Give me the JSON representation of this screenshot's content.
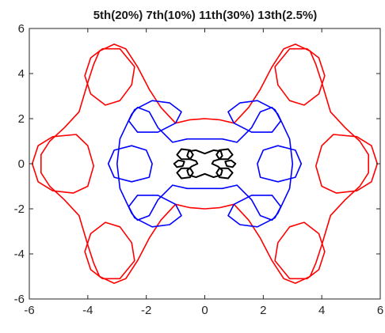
{
  "chart_data": {
    "type": "line",
    "title": "5th(20%)  7th(10%)  11th(30%)  13th(2.5%)",
    "xlabel": "",
    "ylabel": "",
    "xlim": [
      -6,
      6
    ],
    "ylim": [
      -6,
      6
    ],
    "xticks": [
      -6,
      -4,
      -2,
      0,
      2,
      4,
      6
    ],
    "yticks": [
      -6,
      -4,
      -2,
      0,
      2,
      4,
      6
    ],
    "xtick_labels": [
      "-6",
      "-4",
      "-2",
      "0",
      "2",
      "4",
      "6"
    ],
    "ytick_labels": [
      "-6",
      "-4",
      "-2",
      "0",
      "2",
      "4",
      "6"
    ],
    "grid": false,
    "series": [
      {
        "color": "#ff0000",
        "closed": true,
        "x": [
          0.0,
          -0.5,
          -1.0,
          -1.5,
          -1.9,
          -2.3,
          -2.7,
          -3.1,
          -3.6,
          -3.8,
          -4.0,
          -4.3,
          -4.8,
          -5.3,
          -5.6,
          -5.6,
          -5.3,
          -4.8,
          -4.3,
          -4.0,
          -3.8,
          -3.6,
          -3.1,
          -2.7,
          -2.3,
          -1.9,
          -1.5,
          -1.0,
          -0.5,
          0.0,
          0.5,
          1.0,
          1.5,
          1.9,
          2.3,
          2.7,
          3.1,
          3.6,
          3.8,
          4.0,
          4.3,
          4.8,
          5.3,
          5.6,
          5.6,
          5.3,
          4.8,
          4.3,
          4.0,
          3.8,
          3.6,
          3.1,
          2.7,
          2.3,
          1.9,
          1.5,
          1.0,
          0.5,
          0.0
        ],
        "y": [
          2.0,
          1.95,
          1.8,
          2.5,
          3.3,
          4.3,
          5.1,
          5.3,
          5.0,
          4.4,
          3.6,
          2.3,
          1.6,
          1.0,
          0.4,
          -0.4,
          -1.0,
          -1.6,
          -2.3,
          -3.6,
          -4.4,
          -5.0,
          -5.3,
          -5.1,
          -4.3,
          -3.3,
          -2.5,
          -1.8,
          -1.95,
          -2.0,
          -1.95,
          -1.8,
          -2.5,
          -3.3,
          -4.3,
          -5.1,
          -5.3,
          -5.0,
          -4.4,
          -3.6,
          -2.3,
          -1.6,
          -1.0,
          -0.4,
          0.4,
          1.0,
          1.6,
          2.3,
          3.6,
          4.4,
          5.0,
          5.3,
          5.1,
          4.3,
          3.3,
          2.5,
          1.8,
          1.95,
          2.0
        ]
      },
      {
        "color": "#ff0000",
        "closed": true,
        "x": [
          -2.4,
          -2.9,
          -3.5,
          -3.9,
          -4.1,
          -3.9,
          -3.4,
          -2.9,
          -2.5,
          -2.4
        ],
        "y": [
          4.3,
          5.1,
          5.1,
          4.7,
          3.9,
          3.1,
          2.6,
          2.8,
          3.5,
          4.3
        ]
      },
      {
        "color": "#ff0000",
        "closed": true,
        "x": [
          2.4,
          2.9,
          3.5,
          3.9,
          4.1,
          3.9,
          3.4,
          2.9,
          2.5,
          2.4
        ],
        "y": [
          4.3,
          5.1,
          5.1,
          4.7,
          3.9,
          3.1,
          2.6,
          2.8,
          3.5,
          4.3
        ]
      },
      {
        "color": "#ff0000",
        "closed": true,
        "x": [
          -2.4,
          -2.9,
          -3.5,
          -3.9,
          -4.1,
          -3.9,
          -3.4,
          -2.9,
          -2.5,
          -2.4
        ],
        "y": [
          -4.3,
          -5.1,
          -5.1,
          -4.7,
          -3.9,
          -3.1,
          -2.6,
          -2.8,
          -3.5,
          -4.3
        ]
      },
      {
        "color": "#ff0000",
        "closed": true,
        "x": [
          2.4,
          2.9,
          3.5,
          3.9,
          4.1,
          3.9,
          3.4,
          2.9,
          2.5,
          2.4
        ],
        "y": [
          -4.3,
          -5.1,
          -5.1,
          -4.7,
          -3.9,
          -3.1,
          -2.6,
          -2.8,
          -3.5,
          -4.3
        ]
      },
      {
        "color": "#ff0000",
        "closed": true,
        "x": [
          -4.4,
          -5.2,
          -5.7,
          -5.9,
          -5.7,
          -5.2,
          -4.5,
          -4.0,
          -3.8,
          -4.0,
          -4.4
        ],
        "y": [
          1.3,
          1.2,
          0.8,
          0.0,
          -0.8,
          -1.2,
          -1.3,
          -1.0,
          -0.1,
          0.8,
          1.3
        ]
      },
      {
        "color": "#ff0000",
        "closed": true,
        "x": [
          4.4,
          5.2,
          5.7,
          5.9,
          5.7,
          5.2,
          4.5,
          4.0,
          3.8,
          4.0,
          4.4
        ],
        "y": [
          1.3,
          1.2,
          0.8,
          0.0,
          -0.8,
          -1.2,
          -1.3,
          -1.0,
          -0.1,
          0.8,
          1.3
        ]
      },
      {
        "color": "#0000ff",
        "closed": true,
        "x": [
          0.0,
          -0.6,
          -1.1,
          -1.6,
          -1.9,
          -2.3,
          -2.5,
          -2.9,
          -3.0,
          -2.9,
          -2.5,
          -2.3,
          -1.9,
          -1.6,
          -1.1,
          -0.6,
          0.0,
          0.6,
          1.1,
          1.6,
          1.9,
          2.3,
          2.5,
          2.9,
          3.0,
          2.9,
          2.5,
          2.3,
          1.9,
          1.6,
          1.1,
          0.6,
          0.0
        ],
        "y": [
          1.1,
          1.1,
          0.95,
          1.6,
          2.3,
          2.5,
          2.2,
          1.1,
          0.0,
          -1.1,
          -2.2,
          -2.5,
          -2.3,
          -1.6,
          -0.95,
          -1.1,
          -1.1,
          -1.1,
          -0.95,
          -1.6,
          -2.3,
          -2.5,
          -2.2,
          -1.1,
          0.0,
          1.1,
          2.2,
          2.5,
          2.3,
          1.6,
          0.95,
          1.1,
          1.1
        ]
      },
      {
        "color": "#0000ff",
        "closed": true,
        "x": [
          -1.2,
          -1.8,
          -2.4,
          -2.6,
          -2.3,
          -1.6,
          -1.0,
          -0.8,
          -1.2
        ],
        "y": [
          2.7,
          2.8,
          2.4,
          1.9,
          1.4,
          1.4,
          1.8,
          2.3,
          2.7
        ]
      },
      {
        "color": "#0000ff",
        "closed": true,
        "x": [
          1.2,
          1.8,
          2.4,
          2.6,
          2.3,
          1.6,
          1.0,
          0.8,
          1.2
        ],
        "y": [
          2.7,
          2.8,
          2.4,
          1.9,
          1.4,
          1.4,
          1.8,
          2.3,
          2.7
        ]
      },
      {
        "color": "#0000ff",
        "closed": true,
        "x": [
          -1.2,
          -1.8,
          -2.4,
          -2.6,
          -2.3,
          -1.6,
          -1.0,
          -0.8,
          -1.2
        ],
        "y": [
          -2.7,
          -2.8,
          -2.4,
          -1.9,
          -1.4,
          -1.4,
          -1.8,
          -2.3,
          -2.7
        ]
      },
      {
        "color": "#0000ff",
        "closed": true,
        "x": [
          1.2,
          1.8,
          2.4,
          2.6,
          2.3,
          1.6,
          1.0,
          0.8,
          1.2
        ],
        "y": [
          -2.7,
          -2.8,
          -2.4,
          -1.9,
          -1.4,
          -1.4,
          -1.8,
          -2.3,
          -2.7
        ]
      },
      {
        "color": "#0000ff",
        "closed": true,
        "x": [
          -2.0,
          -2.5,
          -3.1,
          -3.3,
          -3.1,
          -2.5,
          -1.9,
          -1.8,
          -2.0
        ],
        "y": [
          0.6,
          0.8,
          0.6,
          0.0,
          -0.6,
          -0.8,
          -0.6,
          0.0,
          0.6
        ]
      },
      {
        "color": "#0000ff",
        "closed": true,
        "x": [
          2.0,
          2.5,
          3.1,
          3.3,
          3.1,
          2.5,
          1.9,
          1.8,
          2.0
        ],
        "y": [
          0.6,
          0.8,
          0.6,
          0.0,
          -0.6,
          -0.8,
          -0.6,
          0.0,
          0.6
        ]
      },
      {
        "color": "#000000",
        "closed": true,
        "x": [
          0.0,
          -0.3,
          -0.55,
          -0.6,
          -0.5,
          -0.3,
          -0.25,
          -0.45,
          -0.6,
          -0.55,
          -0.3,
          0.0,
          0.3,
          0.55,
          0.6,
          0.45,
          0.25,
          0.3,
          0.5,
          0.6,
          0.55,
          0.3,
          0.0
        ],
        "y": [
          0.45,
          0.6,
          0.55,
          0.35,
          0.2,
          0.12,
          0.0,
          -0.12,
          -0.3,
          -0.5,
          -0.6,
          -0.45,
          -0.6,
          -0.5,
          -0.3,
          -0.12,
          0.0,
          0.12,
          0.2,
          0.35,
          0.55,
          0.6,
          0.45
        ]
      },
      {
        "color": "#000000",
        "closed": true,
        "x": [
          -0.5,
          -0.8,
          -0.95,
          -0.8,
          -0.5,
          -0.4,
          -0.5
        ],
        "y": [
          0.6,
          0.65,
          0.4,
          0.2,
          0.2,
          0.4,
          0.6
        ]
      },
      {
        "color": "#000000",
        "closed": true,
        "x": [
          0.5,
          0.8,
          0.95,
          0.8,
          0.5,
          0.4,
          0.5
        ],
        "y": [
          0.6,
          0.65,
          0.4,
          0.2,
          0.2,
          0.4,
          0.6
        ]
      },
      {
        "color": "#000000",
        "closed": true,
        "x": [
          -0.5,
          -0.8,
          -0.95,
          -0.8,
          -0.5,
          -0.4,
          -0.5
        ],
        "y": [
          -0.6,
          -0.65,
          -0.4,
          -0.2,
          -0.2,
          -0.4,
          -0.6
        ]
      },
      {
        "color": "#000000",
        "closed": true,
        "x": [
          0.5,
          0.8,
          0.95,
          0.8,
          0.5,
          0.4,
          0.5
        ],
        "y": [
          -0.6,
          -0.65,
          -0.4,
          -0.2,
          -0.2,
          -0.4,
          -0.6
        ]
      },
      {
        "color": "#000000",
        "closed": true,
        "x": [
          -0.9,
          -1.05,
          -0.95,
          -0.75,
          -0.7,
          -0.9
        ],
        "y": [
          0.15,
          0.0,
          -0.15,
          -0.1,
          0.1,
          0.15
        ]
      },
      {
        "color": "#000000",
        "closed": true,
        "x": [
          0.9,
          1.05,
          0.95,
          0.75,
          0.7,
          0.9
        ],
        "y": [
          0.15,
          0.0,
          -0.15,
          -0.1,
          0.1,
          0.15
        ]
      }
    ]
  }
}
